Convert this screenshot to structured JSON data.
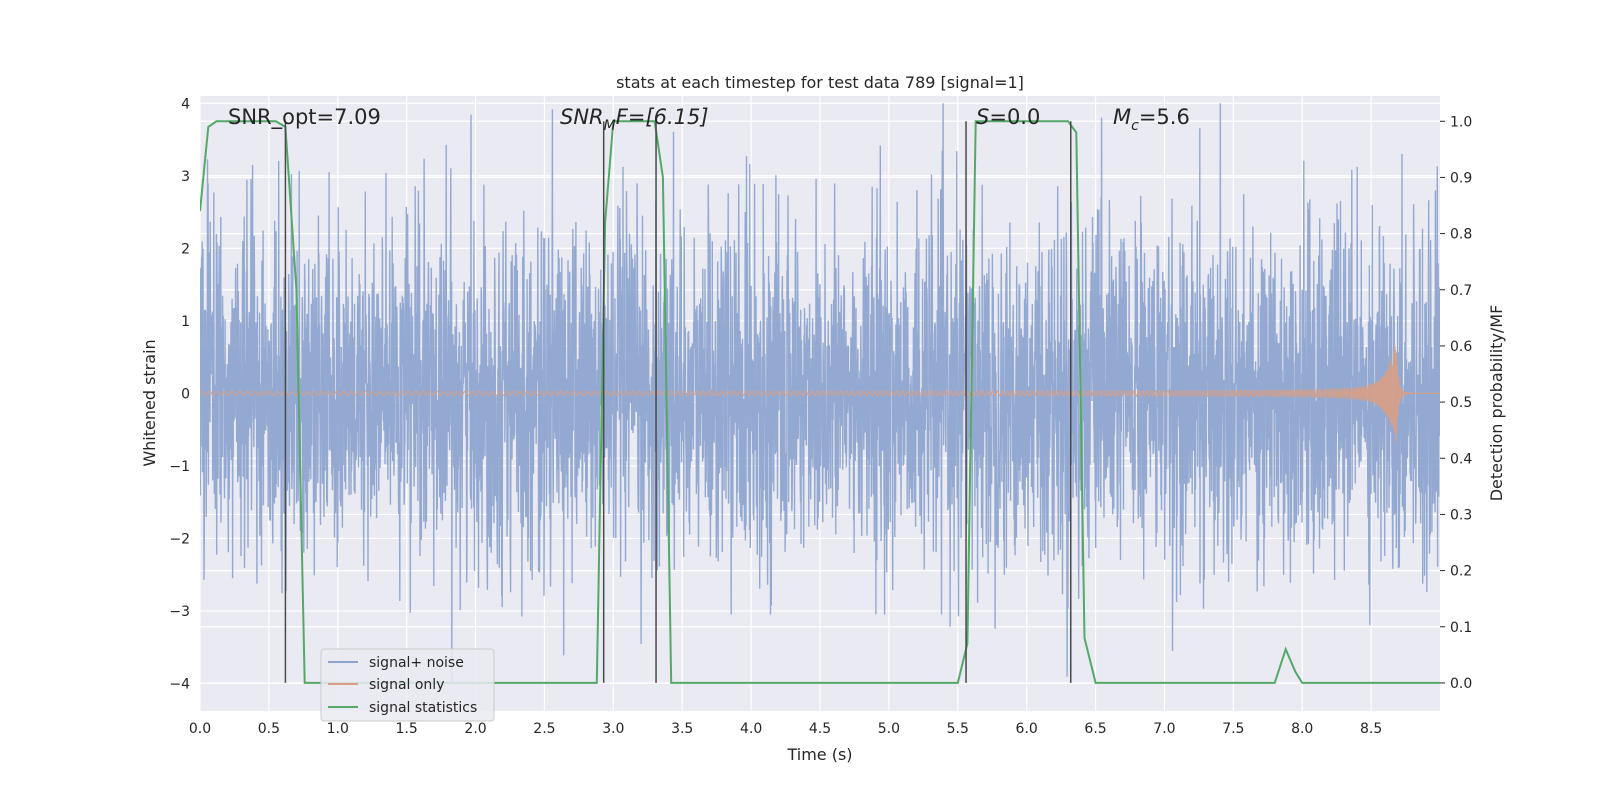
{
  "chart_data": {
    "type": "line",
    "title": "stats at each timestep for test data 789 [signal=1]",
    "xlabel": "Time (s)",
    "ylabel": "Whitened strain",
    "y2label": "Detection probability/MF",
    "xlim": [
      0.0,
      9.0
    ],
    "ylim": [
      -4.38,
      4.1
    ],
    "y2lim": [
      -0.05,
      1.045
    ],
    "xticks": [
      "0.0",
      "0.5",
      "1.0",
      "1.5",
      "2.0",
      "2.5",
      "3.0",
      "3.5",
      "4.0",
      "4.5",
      "5.0",
      "5.5",
      "6.0",
      "6.5",
      "7.0",
      "7.5",
      "8.0",
      "8.5"
    ],
    "yticks": [
      "4",
      "3",
      "2",
      "1",
      "0",
      "−1",
      "−2",
      "−3",
      "−4"
    ],
    "y2ticks": [
      "1.0",
      "0.9",
      "0.8",
      "0.7",
      "0.6",
      "0.5",
      "0.4",
      "0.3",
      "0.2",
      "0.1",
      "0.0"
    ],
    "grid": true,
    "legend_position": "lower-left",
    "legend": [
      "signal+ noise",
      "signal only",
      "signal statistics"
    ],
    "series": [
      {
        "name": "signal+ noise",
        "color": "#8fa5cf",
        "description_noise_std": 1.0,
        "t_range": [
          0.0,
          9.0
        ]
      },
      {
        "name": "signal only",
        "color": "#d99f86",
        "chirp_start_amp": 0.02,
        "chirp_peak_time": 8.68,
        "chirp_peak_amp": 0.75
      },
      {
        "name": "signal statistics",
        "color": "#55a868",
        "axis": "right",
        "x": [
          0.0,
          0.06,
          0.12,
          0.55,
          0.62,
          0.7,
          0.76,
          2.88,
          2.94,
          3.0,
          3.3,
          3.36,
          3.42,
          5.5,
          5.57,
          5.63,
          6.3,
          6.36,
          6.42,
          6.5,
          6.6,
          7.8,
          7.88,
          7.95,
          8.0,
          9.0
        ],
        "y": [
          0.84,
          0.99,
          1.0,
          1.0,
          0.99,
          0.7,
          0.0,
          0.0,
          0.82,
          1.0,
          1.0,
          0.9,
          0.0,
          0.0,
          0.07,
          1.0,
          1.0,
          0.98,
          0.08,
          0.0,
          0.0,
          0.0,
          0.06,
          0.02,
          0.0,
          0.0
        ]
      }
    ],
    "vertical_lines": [
      0.62,
      2.93,
      3.31,
      5.56,
      6.32
    ],
    "annotations": {
      "snr_opt": "SNR_opt=7.09",
      "snr_mf_base": "SNR",
      "snr_mf_sub": "M",
      "snr_mf_rest": "F=[6.15]",
      "s_base": "S",
      "s_rest": "=0.0",
      "mc_base": "M",
      "mc_sub": "c",
      "mc_rest": "=5.6"
    }
  }
}
